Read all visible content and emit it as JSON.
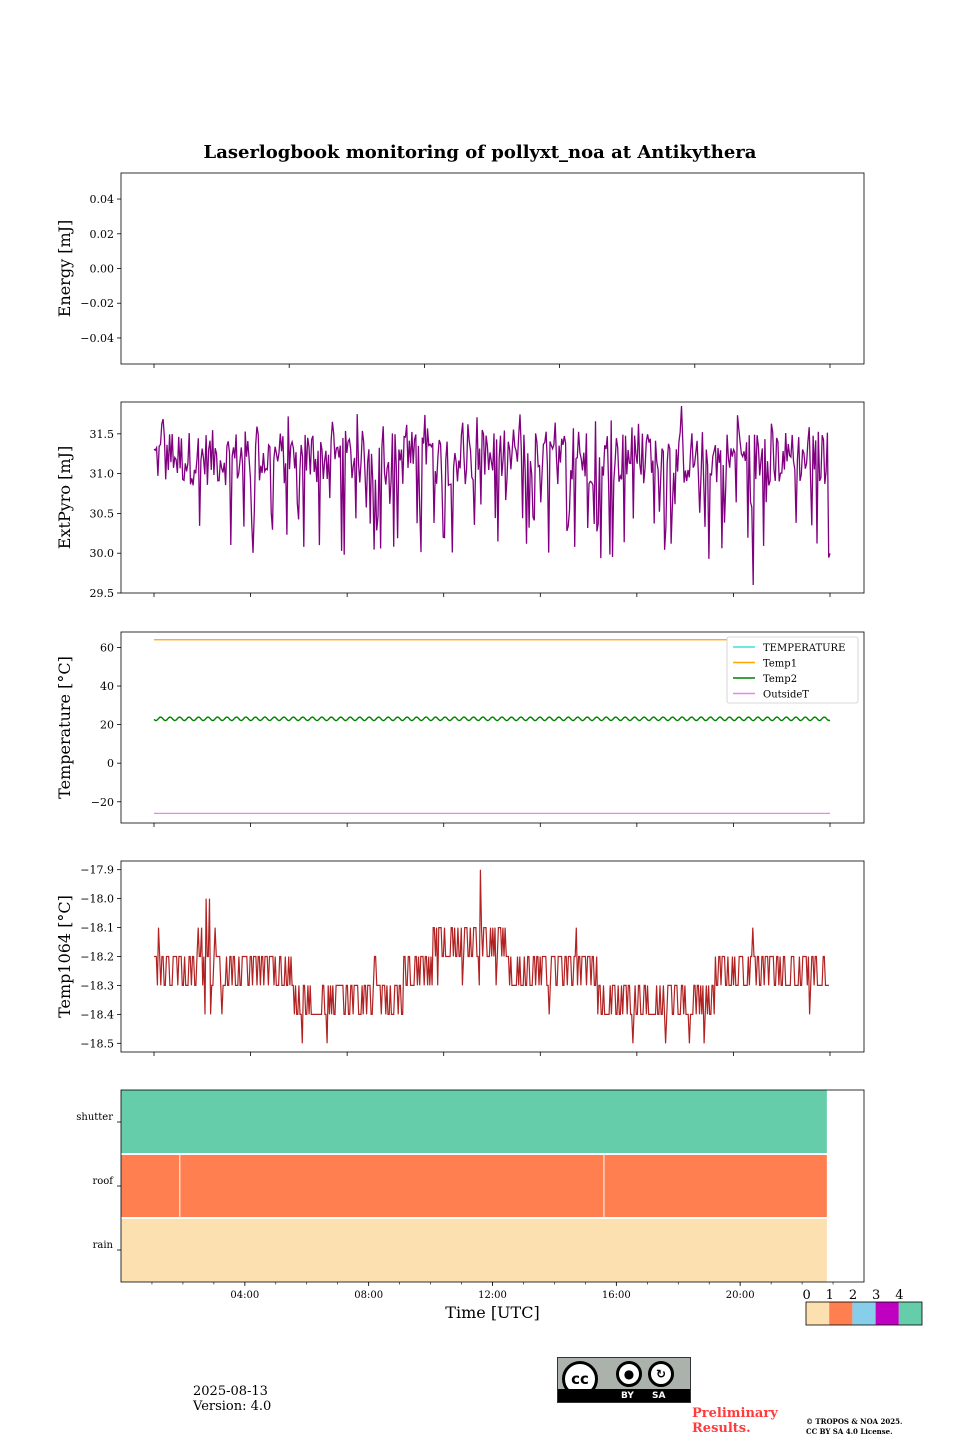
{
  "title": "Laserlogbook monitoring of pollyxt_noa at Antikythera",
  "colors": {
    "extpyro": "#800080",
    "temp1064": "#b22222",
    "temperature": "#40e0d0",
    "temp1": "#ffa500",
    "temp2": "#008000",
    "outsideT": "#ee82ee",
    "state0": "#fde0b0",
    "state1": "#ff7f50",
    "state2": "#87ceeb",
    "state3": "#c000c0",
    "state4": "#66cdaa"
  },
  "chart_data": [
    {
      "type": "line",
      "ylabel": "Energy [mJ]",
      "yticks": [
        "0.04",
        "0.02",
        "0.00",
        "−0.02",
        "−0.04"
      ],
      "ylim": [
        -0.055,
        0.055
      ],
      "series": []
    },
    {
      "type": "line",
      "ylabel": "ExtPyro [mJ]",
      "yticks": [
        "31.5",
        "31.0",
        "30.5",
        "30.0",
        "29.5"
      ],
      "ylim": [
        29.5,
        31.9
      ],
      "x_range_hours": [
        0.5,
        23.5
      ],
      "series": [
        {
          "values_summary": {
            "typical_low": 30.6,
            "typical_high": 31.5,
            "min": 29.6,
            "max": 31.85
          }
        }
      ]
    },
    {
      "type": "line",
      "ylabel": "Temperature [°C]",
      "yticks": [
        "60",
        "40",
        "20",
        "0",
        "−20"
      ],
      "ylim": [
        -31,
        68
      ],
      "legend_position": "top-right",
      "series": [
        {
          "name": "TEMPERATURE",
          "value": null
        },
        {
          "name": "Temp1",
          "value": 64
        },
        {
          "name": "Temp2",
          "value": 23
        },
        {
          "name": "OutsideT",
          "value": -26
        }
      ]
    },
    {
      "type": "line",
      "ylabel": "Temp1064 [°C]",
      "yticks": [
        "−17.9",
        "−18.0",
        "−18.1",
        "−18.2",
        "−18.3",
        "−18.4",
        "−18.5"
      ],
      "ylim": [
        -18.53,
        -17.87
      ],
      "x_range_hours": [
        0.5,
        23.5
      ],
      "segments": [
        {
          "x": [
            0.5,
            5.2
          ],
          "levels": [
            -18.2,
            -18.3
          ],
          "spikes": [
            -18.1,
            -18.0,
            -18.4
          ]
        },
        {
          "x": [
            5.2,
            9.0
          ],
          "levels": [
            -18.3,
            -18.4
          ],
          "spikes": [
            -18.5,
            -18.2
          ]
        },
        {
          "x": [
            9.0,
            10.0
          ],
          "levels": [
            -18.2,
            -18.3
          ],
          "spikes": [
            -18.4
          ]
        },
        {
          "x": [
            10.0,
            12.6
          ],
          "levels": [
            -18.1,
            -18.2
          ],
          "spikes": [
            -17.9,
            -18.3
          ]
        },
        {
          "x": [
            12.6,
            15.6
          ],
          "levels": [
            -18.2,
            -18.3
          ],
          "spikes": [
            -18.4,
            -18.1
          ]
        },
        {
          "x": [
            15.6,
            19.6
          ],
          "levels": [
            -18.3,
            -18.4
          ],
          "spikes": [
            -18.5,
            -18.1
          ]
        },
        {
          "x": [
            19.6,
            23.5
          ],
          "levels": [
            -18.2,
            -18.3
          ],
          "spikes": [
            -18.1,
            -18.4
          ]
        }
      ]
    },
    {
      "type": "heatmap",
      "rows": [
        "shutter",
        "roof",
        "rain"
      ],
      "xlabel": "Time [UTC]",
      "xticks": [
        "04:00",
        "08:00",
        "12:00",
        "16:00",
        "20:00"
      ],
      "x_range_hours": [
        0,
        24
      ],
      "data_end_hours": 22.8,
      "row_states": [
        4,
        1,
        0
      ],
      "colorbar_labels": [
        "0",
        "1",
        "2",
        "3",
        "4"
      ]
    }
  ],
  "footer": {
    "date": "2025-08-13",
    "version": "Version: 4.0",
    "preliminary_line1": "Preliminary",
    "preliminary_line2": "Results.",
    "copyright_line1": "© TROPOS & NOA 2025.",
    "copyright_line2": "CC BY SA 4.0 License.",
    "cc_by": "BY",
    "cc_sa": "SA",
    "cc_mark": "cc"
  }
}
